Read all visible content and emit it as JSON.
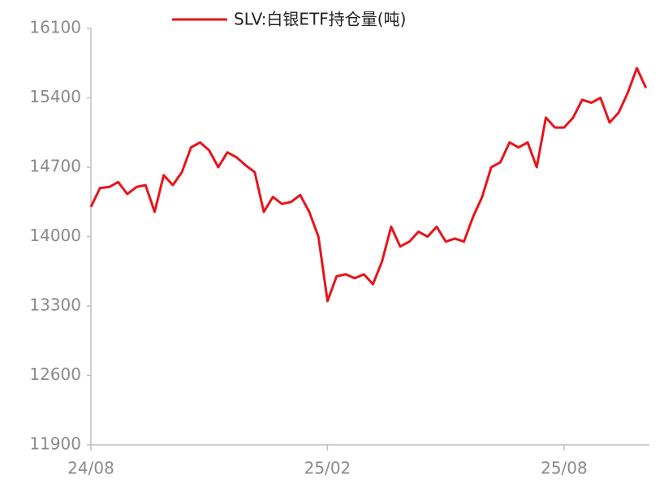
{
  "chart_data": {
    "type": "line",
    "categories": [
      "24/08",
      null,
      null,
      null,
      null,
      null,
      null,
      null,
      null,
      null,
      null,
      null,
      null,
      null,
      null,
      null,
      null,
      null,
      null,
      null,
      null,
      null,
      null,
      null,
      null,
      null,
      "25/02",
      null,
      null,
      null,
      null,
      null,
      null,
      null,
      null,
      null,
      null,
      null,
      null,
      null,
      null,
      null,
      null,
      null,
      null,
      null,
      null,
      null,
      null,
      null,
      null,
      null,
      "25/08",
      null,
      null,
      null,
      null,
      null,
      null,
      null,
      null,
      null
    ],
    "series": [
      {
        "name": "SLV:白银ETF持仓量(吨)",
        "color": "#e8141b",
        "values": [
          14300,
          14490,
          14500,
          14550,
          14430,
          14500,
          14520,
          14250,
          14620,
          14520,
          14650,
          14900,
          14950,
          14870,
          14700,
          14850,
          14800,
          14720,
          14650,
          14250,
          14400,
          14330,
          14350,
          14420,
          14250,
          14000,
          13350,
          13600,
          13620,
          13580,
          13620,
          13520,
          13750,
          14100,
          13900,
          13950,
          14050,
          14000,
          14100,
          13950,
          13980,
          13950,
          14200,
          14400,
          14700,
          14750,
          14950,
          14900,
          14950,
          14700,
          15200,
          15100,
          15100,
          15200,
          15380,
          15350,
          15400,
          15150,
          15250,
          15450,
          15700,
          15500
        ]
      }
    ],
    "ylim": [
      11900,
      16100
    ],
    "yticks": [
      11900,
      12600,
      13300,
      14000,
      14700,
      15400,
      16100
    ],
    "legend": "top"
  }
}
